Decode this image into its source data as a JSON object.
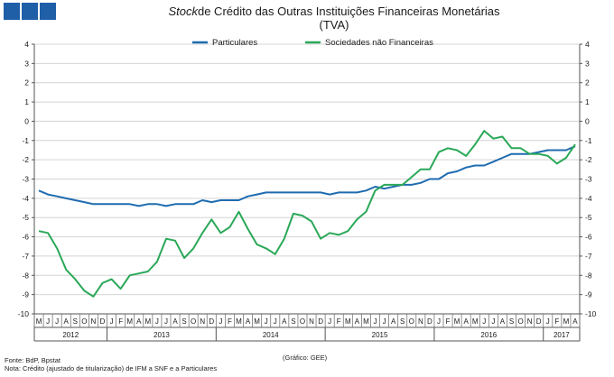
{
  "header": {
    "title_italic": "Stock",
    "title_rest": "de Crédito das Outras Instituições Financeiras Monetárias",
    "subtitle": "(TVA)"
  },
  "colors": {
    "brand": "#1f5fa8",
    "particulares": "#1f6cb0",
    "snf": "#2aa858"
  },
  "chart_data": {
    "type": "line",
    "title": "Stock de Crédito das Outras Instituições Financeiras Monetárias (TVA)",
    "ylim": [
      -10,
      4
    ],
    "yticks": [
      4,
      3,
      2,
      1,
      0,
      -1,
      -2,
      -3,
      -4,
      -5,
      -6,
      -7,
      -8,
      -9,
      -10
    ],
    "grid": true,
    "legend_position": "top-center",
    "month_labels": [
      "M",
      "J",
      "J",
      "A",
      "S",
      "O",
      "N",
      "D",
      "J",
      "F",
      "M",
      "A",
      "M",
      "J",
      "J",
      "A",
      "S",
      "O",
      "N",
      "D",
      "J",
      "F",
      "M",
      "A",
      "M",
      "J",
      "J",
      "A",
      "S",
      "O",
      "N",
      "D",
      "J",
      "F",
      "M",
      "A",
      "M",
      "J",
      "J",
      "A",
      "S",
      "O",
      "N",
      "D",
      "J",
      "F",
      "M",
      "A",
      "M",
      "J",
      "J",
      "A",
      "S",
      "O",
      "N",
      "D",
      "J",
      "F",
      "M",
      "A"
    ],
    "years": [
      {
        "label": "2012",
        "start": 0,
        "count": 8
      },
      {
        "label": "2013",
        "start": 8,
        "count": 12
      },
      {
        "label": "2014",
        "start": 20,
        "count": 12
      },
      {
        "label": "2015",
        "start": 32,
        "count": 12
      },
      {
        "label": "2016",
        "start": 44,
        "count": 12
      },
      {
        "label": "2017",
        "start": 56,
        "count": 4
      }
    ],
    "series": [
      {
        "name": "Particulares",
        "values": [
          -3.6,
          -3.8,
          -3.9,
          -4.0,
          -4.1,
          -4.2,
          -4.3,
          -4.3,
          -4.3,
          -4.3,
          -4.3,
          -4.4,
          -4.3,
          -4.3,
          -4.4,
          -4.3,
          -4.3,
          -4.3,
          -4.1,
          -4.2,
          -4.1,
          -4.1,
          -4.1,
          -3.9,
          -3.8,
          -3.7,
          -3.7,
          -3.7,
          -3.7,
          -3.7,
          -3.7,
          -3.7,
          -3.8,
          -3.7,
          -3.7,
          -3.7,
          -3.6,
          -3.4,
          -3.5,
          -3.4,
          -3.3,
          -3.3,
          -3.2,
          -3.0,
          -3.0,
          -2.7,
          -2.6,
          -2.4,
          -2.3,
          -2.3,
          -2.1,
          -1.9,
          -1.7,
          -1.7,
          -1.7,
          -1.6,
          -1.5,
          -1.5,
          -1.5,
          -1.3
        ]
      },
      {
        "name": "Sociedades não Financeiras",
        "values": [
          -5.7,
          -5.8,
          -6.6,
          -7.7,
          -8.2,
          -8.8,
          -9.1,
          -8.4,
          -8.2,
          -8.7,
          -8.0,
          -7.9,
          -7.8,
          -7.3,
          -6.1,
          -6.2,
          -7.1,
          -6.6,
          -5.8,
          -5.1,
          -5.8,
          -5.5,
          -4.7,
          -5.6,
          -6.4,
          -6.6,
          -6.9,
          -6.1,
          -4.8,
          -4.9,
          -5.2,
          -6.1,
          -5.8,
          -5.9,
          -5.7,
          -5.1,
          -4.7,
          -3.6,
          -3.3,
          -3.3,
          -3.3,
          -2.9,
          -2.5,
          -2.5,
          -1.6,
          -1.4,
          -1.5,
          -1.8,
          -1.2,
          -0.5,
          -0.9,
          -0.8,
          -1.4,
          -1.4,
          -1.7,
          -1.7,
          -1.8,
          -2.2,
          -1.9,
          -1.2
        ]
      }
    ]
  },
  "footer": {
    "source": "Fonte: BdP, Bpstat",
    "note": "Nota: Crédito (ajustado de titularização) de IFM a SNF e a Particulares",
    "chart_id": "(Gráfico: GEE)"
  }
}
